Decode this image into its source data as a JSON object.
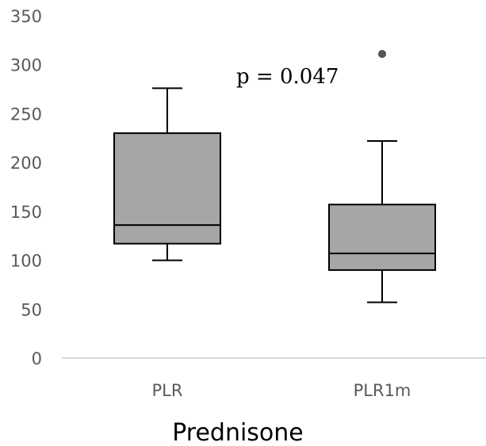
{
  "chart_data": {
    "type": "box",
    "categories": [
      "PLR",
      "PLR1m"
    ],
    "boxes": [
      {
        "category": "PLR",
        "min": 100,
        "q1": 117,
        "median": 136,
        "q3": 230,
        "max": 276,
        "outliers": []
      },
      {
        "category": "PLR1m",
        "min": 57,
        "q1": 90,
        "median": 107,
        "q3": 157,
        "max": 222,
        "outliers": [
          311
        ]
      }
    ],
    "yticks": [
      0,
      50,
      100,
      150,
      200,
      250,
      300,
      350
    ],
    "ylim": [
      0,
      350
    ],
    "xlabel": "Prednisone",
    "ylabel": "",
    "title": "",
    "annotation": "p = 0.047",
    "grid": false,
    "legend": "none",
    "colors": {
      "box_fill": "#a6a6a6",
      "box_stroke": "#000000",
      "axis": "#d9d9d9",
      "tick_text": "#595959",
      "outlier_fill": "#595959"
    }
  }
}
